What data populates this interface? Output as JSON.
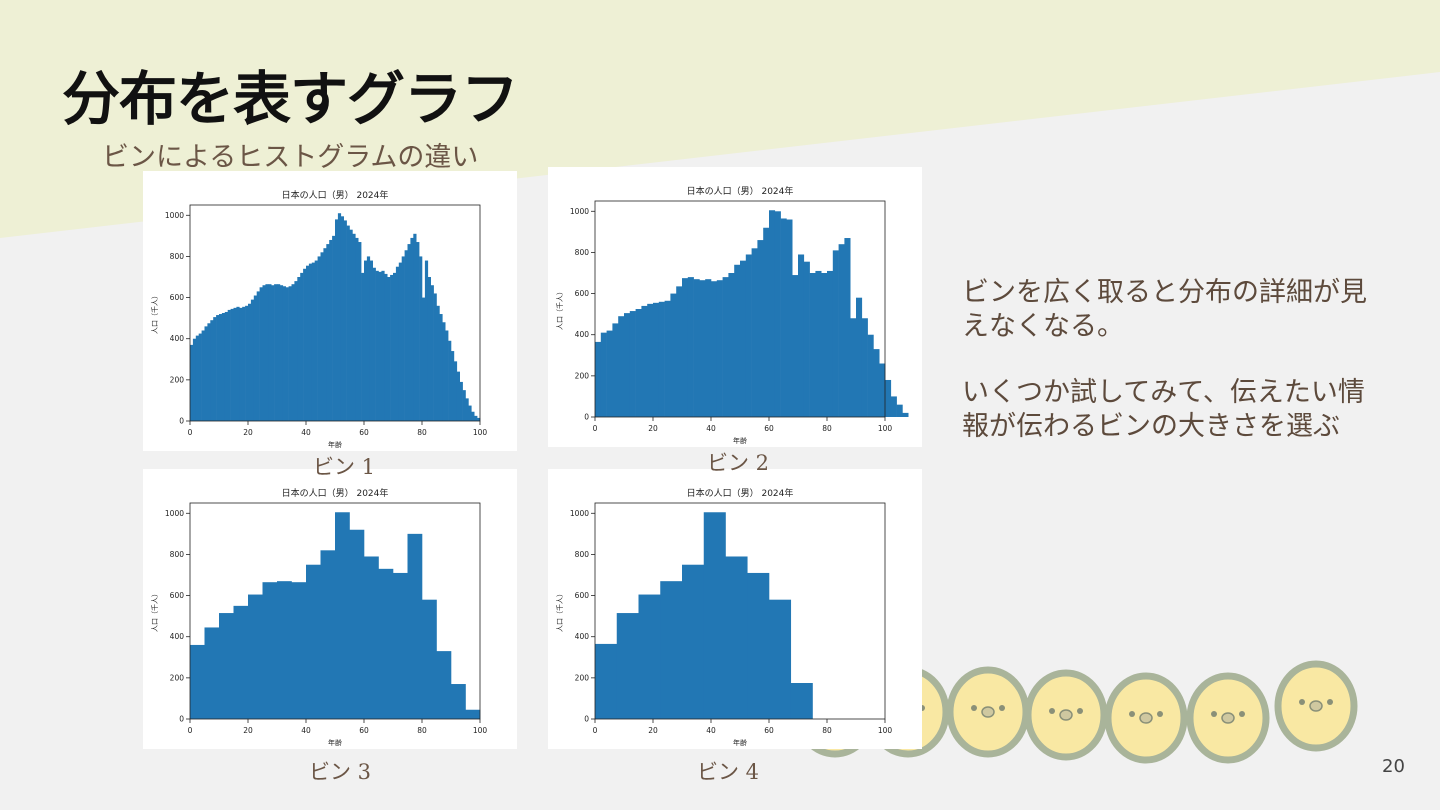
{
  "slide": {
    "title": "分布を表すグラフ",
    "subtitle": "ビンによるヒストグラムの違い",
    "page_number": "20",
    "body_lines": [
      "ビンを広く取ると分布の詳細が見",
      "えなくなる。",
      "いくつか試してみて、伝えたい情",
      "報が伝わるビンの大きさを選ぶ"
    ],
    "captions": [
      "ビン 1",
      "ビン 2",
      "ビン 3",
      "ビン 4"
    ],
    "colors": {
      "bar": "#2277b4",
      "band": "#eef0d5",
      "bg": "#f1f1f1",
      "text": "#5d4a3c"
    },
    "decoration_icon": "chick-row-illustration"
  },
  "chart_data": [
    {
      "type": "bar",
      "title": "日本の人口（男） 2024年",
      "xlabel": "年齢",
      "ylabel": "人口（千人）",
      "xlim": [
        0,
        100
      ],
      "ylim": [
        0,
        1050
      ],
      "xticks": [
        0,
        20,
        40,
        60,
        80,
        100
      ],
      "yticks": [
        0,
        200,
        400,
        600,
        800,
        1000
      ],
      "bin_width": 1,
      "values": [
        370,
        400,
        415,
        425,
        440,
        460,
        475,
        490,
        505,
        515,
        520,
        525,
        530,
        540,
        545,
        550,
        555,
        550,
        555,
        560,
        570,
        590,
        610,
        630,
        650,
        660,
        665,
        665,
        660,
        665,
        665,
        660,
        655,
        650,
        655,
        665,
        680,
        700,
        720,
        740,
        755,
        765,
        770,
        780,
        800,
        820,
        840,
        860,
        880,
        900,
        980,
        1010,
        995,
        975,
        950,
        930,
        910,
        890,
        870,
        720,
        780,
        800,
        780,
        745,
        730,
        725,
        730,
        715,
        700,
        710,
        720,
        750,
        770,
        800,
        830,
        860,
        890,
        910,
        870,
        800,
        600,
        780,
        700,
        660,
        620,
        560,
        520,
        480,
        440,
        390,
        340,
        290,
        240,
        190,
        150,
        110,
        75,
        45,
        25,
        15
      ]
    },
    {
      "type": "bar",
      "title": "日本の人口（男） 2024年",
      "xlabel": "年齢",
      "ylabel": "人口（千人）",
      "xlim": [
        0,
        100
      ],
      "ylim": [
        0,
        1050
      ],
      "xticks": [
        0,
        20,
        40,
        60,
        80,
        100
      ],
      "yticks": [
        0,
        200,
        400,
        600,
        800,
        1000
      ],
      "bin_width": 2,
      "values": [
        365,
        410,
        420,
        455,
        490,
        505,
        515,
        525,
        540,
        550,
        555,
        560,
        565,
        600,
        635,
        675,
        680,
        670,
        665,
        670,
        660,
        665,
        680,
        700,
        740,
        760,
        790,
        820,
        860,
        920,
        1005,
        1000,
        965,
        960,
        690,
        790,
        755,
        700,
        710,
        700,
        710,
        810,
        840,
        870,
        480,
        580,
        480,
        400,
        330,
        260,
        180,
        100,
        60,
        20
      ]
    },
    {
      "type": "bar",
      "title": "日本の人口（男） 2024年",
      "xlabel": "年齢",
      "ylabel": "人口（千人）",
      "xlim": [
        0,
        100
      ],
      "ylim": [
        0,
        1050
      ],
      "xticks": [
        0,
        20,
        40,
        60,
        80,
        100
      ],
      "yticks": [
        0,
        200,
        400,
        600,
        800,
        1000
      ],
      "bin_width": 5,
      "values": [
        360,
        445,
        515,
        550,
        605,
        665,
        670,
        665,
        750,
        820,
        1005,
        920,
        790,
        730,
        710,
        900,
        580,
        330,
        170,
        45
      ]
    },
    {
      "type": "bar",
      "title": "日本の人口（男） 2024年",
      "xlabel": "年齢",
      "ylabel": "人口（千人）",
      "xlim": [
        0,
        100
      ],
      "ylim": [
        0,
        1050
      ],
      "xticks": [
        0,
        20,
        40,
        60,
        80,
        100
      ],
      "yticks": [
        0,
        200,
        400,
        600,
        800,
        1000
      ],
      "bin_width": 7.5,
      "values": [
        365,
        515,
        605,
        670,
        750,
        1005,
        790,
        710,
        580,
        175
      ]
    }
  ]
}
